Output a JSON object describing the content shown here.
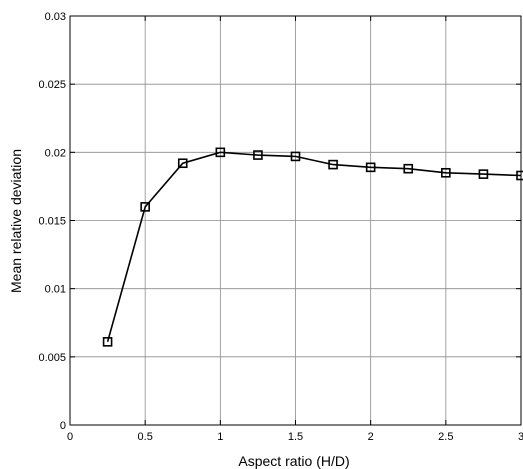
{
  "chart_data": {
    "type": "line",
    "title": "",
    "xlabel": "Aspect ratio (H/D)",
    "ylabel": "Mean relative deviation",
    "xlim": [
      0,
      3
    ],
    "ylim": [
      0,
      0.03
    ],
    "grid": true,
    "xticks": [
      0,
      0.5,
      1,
      1.5,
      2,
      2.5,
      3
    ],
    "xtick_labels": [
      "0",
      "0.5",
      "1",
      "1.5",
      "2",
      "2.5",
      "3"
    ],
    "yticks": [
      0,
      0.005,
      0.01,
      0.015,
      0.02,
      0.025,
      0.03
    ],
    "ytick_labels": [
      "0",
      "0.005",
      "0.01",
      "0.015",
      "0.02",
      "0.025",
      "0.03"
    ],
    "series": [
      {
        "marker": "square",
        "color": "#000000",
        "x": [
          0.25,
          0.5,
          0.75,
          1.0,
          1.25,
          1.5,
          1.75,
          2.0,
          2.25,
          2.5,
          2.75,
          3.0
        ],
        "y": [
          0.0061,
          0.016,
          0.0192,
          0.02,
          0.0198,
          0.0197,
          0.0191,
          0.0189,
          0.0188,
          0.0185,
          0.0184,
          0.0183
        ]
      }
    ]
  }
}
